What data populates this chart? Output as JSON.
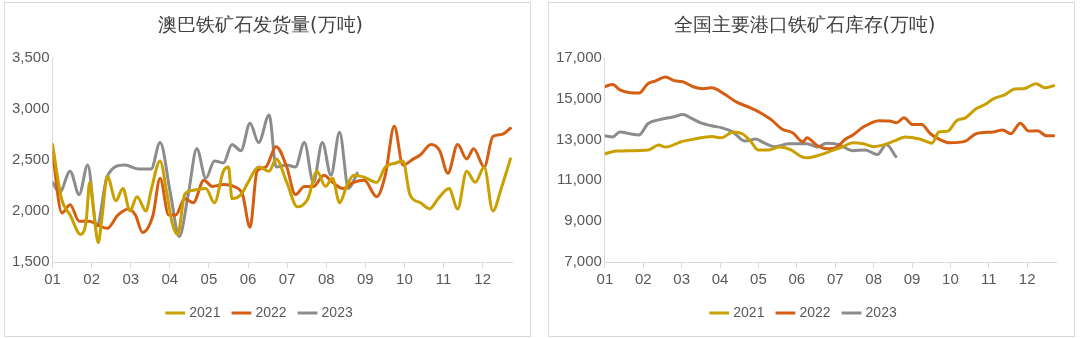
{
  "chart_data": [
    {
      "type": "line",
      "title": "澳巴铁矿石发货量(万吨)",
      "xlim": [
        1,
        12.75
      ],
      "xticks": [
        {
          "value": 1,
          "label": "01"
        },
        {
          "value": 2,
          "label": "02"
        },
        {
          "value": 3,
          "label": "03"
        },
        {
          "value": 4,
          "label": "04"
        },
        {
          "value": 5,
          "label": "05"
        },
        {
          "value": 6,
          "label": "06"
        },
        {
          "value": 7,
          "label": "07"
        },
        {
          "value": 8,
          "label": "08"
        },
        {
          "value": 9,
          "label": "09"
        },
        {
          "value": 10,
          "label": "10"
        },
        {
          "value": 11,
          "label": "11"
        },
        {
          "value": 12,
          "label": "12"
        }
      ],
      "ylim": [
        1500,
        3500
      ],
      "yticks": [
        {
          "value": 1500,
          "label": "1,500"
        },
        {
          "value": 2000,
          "label": "2,000"
        },
        {
          "value": 2500,
          "label": "2,500"
        },
        {
          "value": 3000,
          "label": "3,000"
        },
        {
          "value": 3500,
          "label": "3,500"
        }
      ],
      "grid": false,
      "legend": "bottom",
      "marker": "none",
      "line_style": "solid",
      "series": [
        {
          "name": "2021",
          "color": "#c9a000",
          "x": [
            1.0,
            1.23,
            1.45,
            1.72,
            1.86,
            1.95,
            2.04,
            2.17,
            2.26,
            2.4,
            2.62,
            2.8,
            2.98,
            3.16,
            3.39,
            3.52,
            3.75,
            3.93,
            4.06,
            4.2,
            4.38,
            4.56,
            4.92,
            5.14,
            5.37,
            5.5,
            5.59,
            5.82,
            6.0,
            6.27,
            6.54,
            6.72,
            6.99,
            7.26,
            7.53,
            7.76,
            7.98,
            8.16,
            8.34,
            8.52,
            8.7,
            8.97,
            9.29,
            9.51,
            9.78,
            9.96,
            10.14,
            10.41,
            10.64,
            10.86,
            11.14,
            11.36,
            11.59,
            11.81,
            12.04,
            12.26,
            12.49,
            12.71
          ],
          "values": [
            2650,
            2120,
            1960,
            1770,
            1900,
            2280,
            2040,
            1690,
            1920,
            2340,
            2100,
            2220,
            2000,
            2140,
            2000,
            2200,
            2490,
            2160,
            1880,
            1770,
            2160,
            2200,
            2220,
            2080,
            2390,
            2430,
            2120,
            2160,
            2280,
            2430,
            2390,
            2510,
            2280,
            2040,
            2120,
            2390,
            2240,
            2320,
            2080,
            2240,
            2350,
            2330,
            2280,
            2430,
            2470,
            2490,
            2160,
            2080,
            2020,
            2120,
            2220,
            2020,
            2390,
            2280,
            2430,
            2000,
            2240,
            2510
          ]
        },
        {
          "name": "2022",
          "color": "#d55e12",
          "x": [
            1.0,
            1.24,
            1.45,
            1.68,
            1.95,
            2.17,
            2.4,
            2.67,
            2.94,
            3.12,
            3.3,
            3.57,
            3.75,
            3.97,
            4.15,
            4.38,
            4.6,
            4.87,
            5.09,
            5.37,
            5.64,
            5.86,
            6.05,
            6.23,
            6.45,
            6.72,
            6.99,
            7.21,
            7.44,
            7.67,
            7.94,
            8.16,
            8.43,
            8.7,
            8.97,
            9.29,
            9.51,
            9.74,
            9.96,
            10.23,
            10.41,
            10.68,
            10.9,
            11.11,
            11.36,
            11.59,
            11.77,
            12.04,
            12.26,
            12.49,
            12.71
          ],
          "values": [
            2570,
            1980,
            2060,
            1900,
            1900,
            1860,
            1830,
            1960,
            2020,
            1960,
            1790,
            1960,
            2320,
            1960,
            1960,
            2120,
            2080,
            2300,
            2240,
            2260,
            2240,
            2160,
            1840,
            2390,
            2430,
            2630,
            2430,
            2160,
            2240,
            2240,
            2350,
            2280,
            2220,
            2280,
            2300,
            2140,
            2350,
            2830,
            2450,
            2510,
            2550,
            2650,
            2590,
            2370,
            2650,
            2510,
            2610,
            2430,
            2730,
            2750,
            2810
          ]
        },
        {
          "name": "2023",
          "color": "#8c8c8c",
          "x": [
            1.0,
            1.18,
            1.45,
            1.68,
            1.9,
            2.13,
            2.4,
            2.85,
            3.21,
            3.52,
            3.75,
            4.02,
            4.24,
            4.47,
            4.69,
            4.92,
            5.14,
            5.37,
            5.59,
            5.82,
            6.05,
            6.27,
            6.54,
            6.72,
            6.99,
            7.21,
            7.44,
            7.67,
            7.9,
            8.12,
            8.34,
            8.57,
            8.79
          ],
          "values": [
            2280,
            2180,
            2390,
            2160,
            2450,
            1850,
            2340,
            2450,
            2410,
            2410,
            2670,
            2160,
            1750,
            2160,
            2610,
            2320,
            2490,
            2470,
            2650,
            2590,
            2860,
            2670,
            2940,
            2430,
            2450,
            2430,
            2670,
            2280,
            2670,
            2350,
            2770,
            2220,
            2370
          ]
        }
      ]
    },
    {
      "type": "line",
      "title": "全国主要港口铁矿石库存(万吨)",
      "xlim": [
        1,
        12.75
      ],
      "xticks": [
        {
          "value": 1,
          "label": "01"
        },
        {
          "value": 2,
          "label": "02"
        },
        {
          "value": 3,
          "label": "03"
        },
        {
          "value": 4,
          "label": "04"
        },
        {
          "value": 5,
          "label": "05"
        },
        {
          "value": 6,
          "label": "06"
        },
        {
          "value": 7,
          "label": "07"
        },
        {
          "value": 8,
          "label": "08"
        },
        {
          "value": 9,
          "label": "09"
        },
        {
          "value": 10,
          "label": "10"
        },
        {
          "value": 11,
          "label": "11"
        },
        {
          "value": 12,
          "label": "12"
        }
      ],
      "ylim": [
        7000,
        17000
      ],
      "yticks": [
        {
          "value": 7000,
          "label": "7,000"
        },
        {
          "value": 9000,
          "label": "9,000"
        },
        {
          "value": 11000,
          "label": "11,000"
        },
        {
          "value": 13000,
          "label": "13,000"
        },
        {
          "value": 15000,
          "label": "15,000"
        },
        {
          "value": 17000,
          "label": "17,000"
        }
      ],
      "grid": false,
      "legend": "bottom",
      "marker": "none",
      "line_style": "solid",
      "series": [
        {
          "name": "2021",
          "color": "#c9a000",
          "x": [
            1.0,
            1.29,
            2.13,
            2.4,
            2.59,
            2.97,
            3.33,
            3.79,
            4.02,
            4.35,
            4.58,
            4.81,
            4.99,
            5.27,
            5.55,
            5.85,
            6.08,
            6.26,
            6.63,
            6.91,
            7.18,
            7.46,
            7.73,
            8.01,
            8.28,
            8.56,
            8.83,
            9.2,
            9.52,
            9.7,
            9.93,
            10.16,
            10.39,
            10.67,
            10.9,
            11.13,
            11.41,
            11.68,
            11.91,
            12.23,
            12.46,
            12.69
          ],
          "values": [
            12300,
            12430,
            12490,
            12730,
            12630,
            12880,
            13020,
            13140,
            13080,
            13370,
            13280,
            12880,
            12490,
            12490,
            12630,
            12490,
            12200,
            12100,
            12260,
            12450,
            12630,
            12840,
            12790,
            12650,
            12750,
            12940,
            13120,
            13020,
            12820,
            13370,
            13410,
            13920,
            14060,
            14510,
            14710,
            15000,
            15180,
            15470,
            15490,
            15730,
            15530,
            15630
          ]
        },
        {
          "name": "2022",
          "color": "#d55e12",
          "x": [
            1.0,
            1.2,
            1.39,
            1.66,
            1.89,
            2.12,
            2.31,
            2.58,
            2.81,
            3.04,
            3.32,
            3.55,
            3.78,
            4.1,
            4.42,
            4.79,
            5.06,
            5.34,
            5.61,
            5.89,
            6.16,
            6.26,
            6.54,
            6.81,
            7.0,
            7.27,
            7.46,
            7.73,
            8.14,
            8.42,
            8.6,
            8.79,
            9.02,
            9.25,
            9.48,
            9.7,
            9.98,
            10.39,
            10.67,
            11.13,
            11.36,
            11.57,
            11.82,
            12.04,
            12.27,
            12.5,
            12.69
          ],
          "values": [
            15590,
            15690,
            15430,
            15290,
            15280,
            15730,
            15860,
            16060,
            15880,
            15820,
            15570,
            15490,
            15530,
            15240,
            14840,
            14550,
            14300,
            13960,
            13510,
            13330,
            12880,
            13080,
            12690,
            12550,
            12590,
            13020,
            13220,
            13610,
            13920,
            13900,
            13820,
            14060,
            13730,
            13730,
            13280,
            13020,
            12840,
            12920,
            13280,
            13370,
            13470,
            13280,
            13800,
            13410,
            13430,
            13180,
            13180
          ]
        },
        {
          "name": "2023",
          "color": "#8c8c8c",
          "x": [
            1.0,
            1.2,
            1.39,
            1.66,
            1.89,
            2.12,
            2.4,
            2.77,
            3.04,
            3.23,
            3.5,
            3.78,
            4.05,
            4.33,
            4.65,
            4.93,
            5.16,
            5.43,
            5.8,
            6.16,
            6.26,
            6.54,
            6.77,
            7.09,
            7.46,
            7.78,
            8.1,
            8.33,
            8.58
          ],
          "values": [
            13180,
            13120,
            13370,
            13280,
            13220,
            13770,
            13960,
            14100,
            14220,
            14060,
            13810,
            13670,
            13570,
            13370,
            12920,
            13020,
            12820,
            12650,
            12790,
            12790,
            12790,
            12630,
            12820,
            12750,
            12450,
            12490,
            12260,
            12750,
            12160
          ]
        }
      ]
    }
  ]
}
